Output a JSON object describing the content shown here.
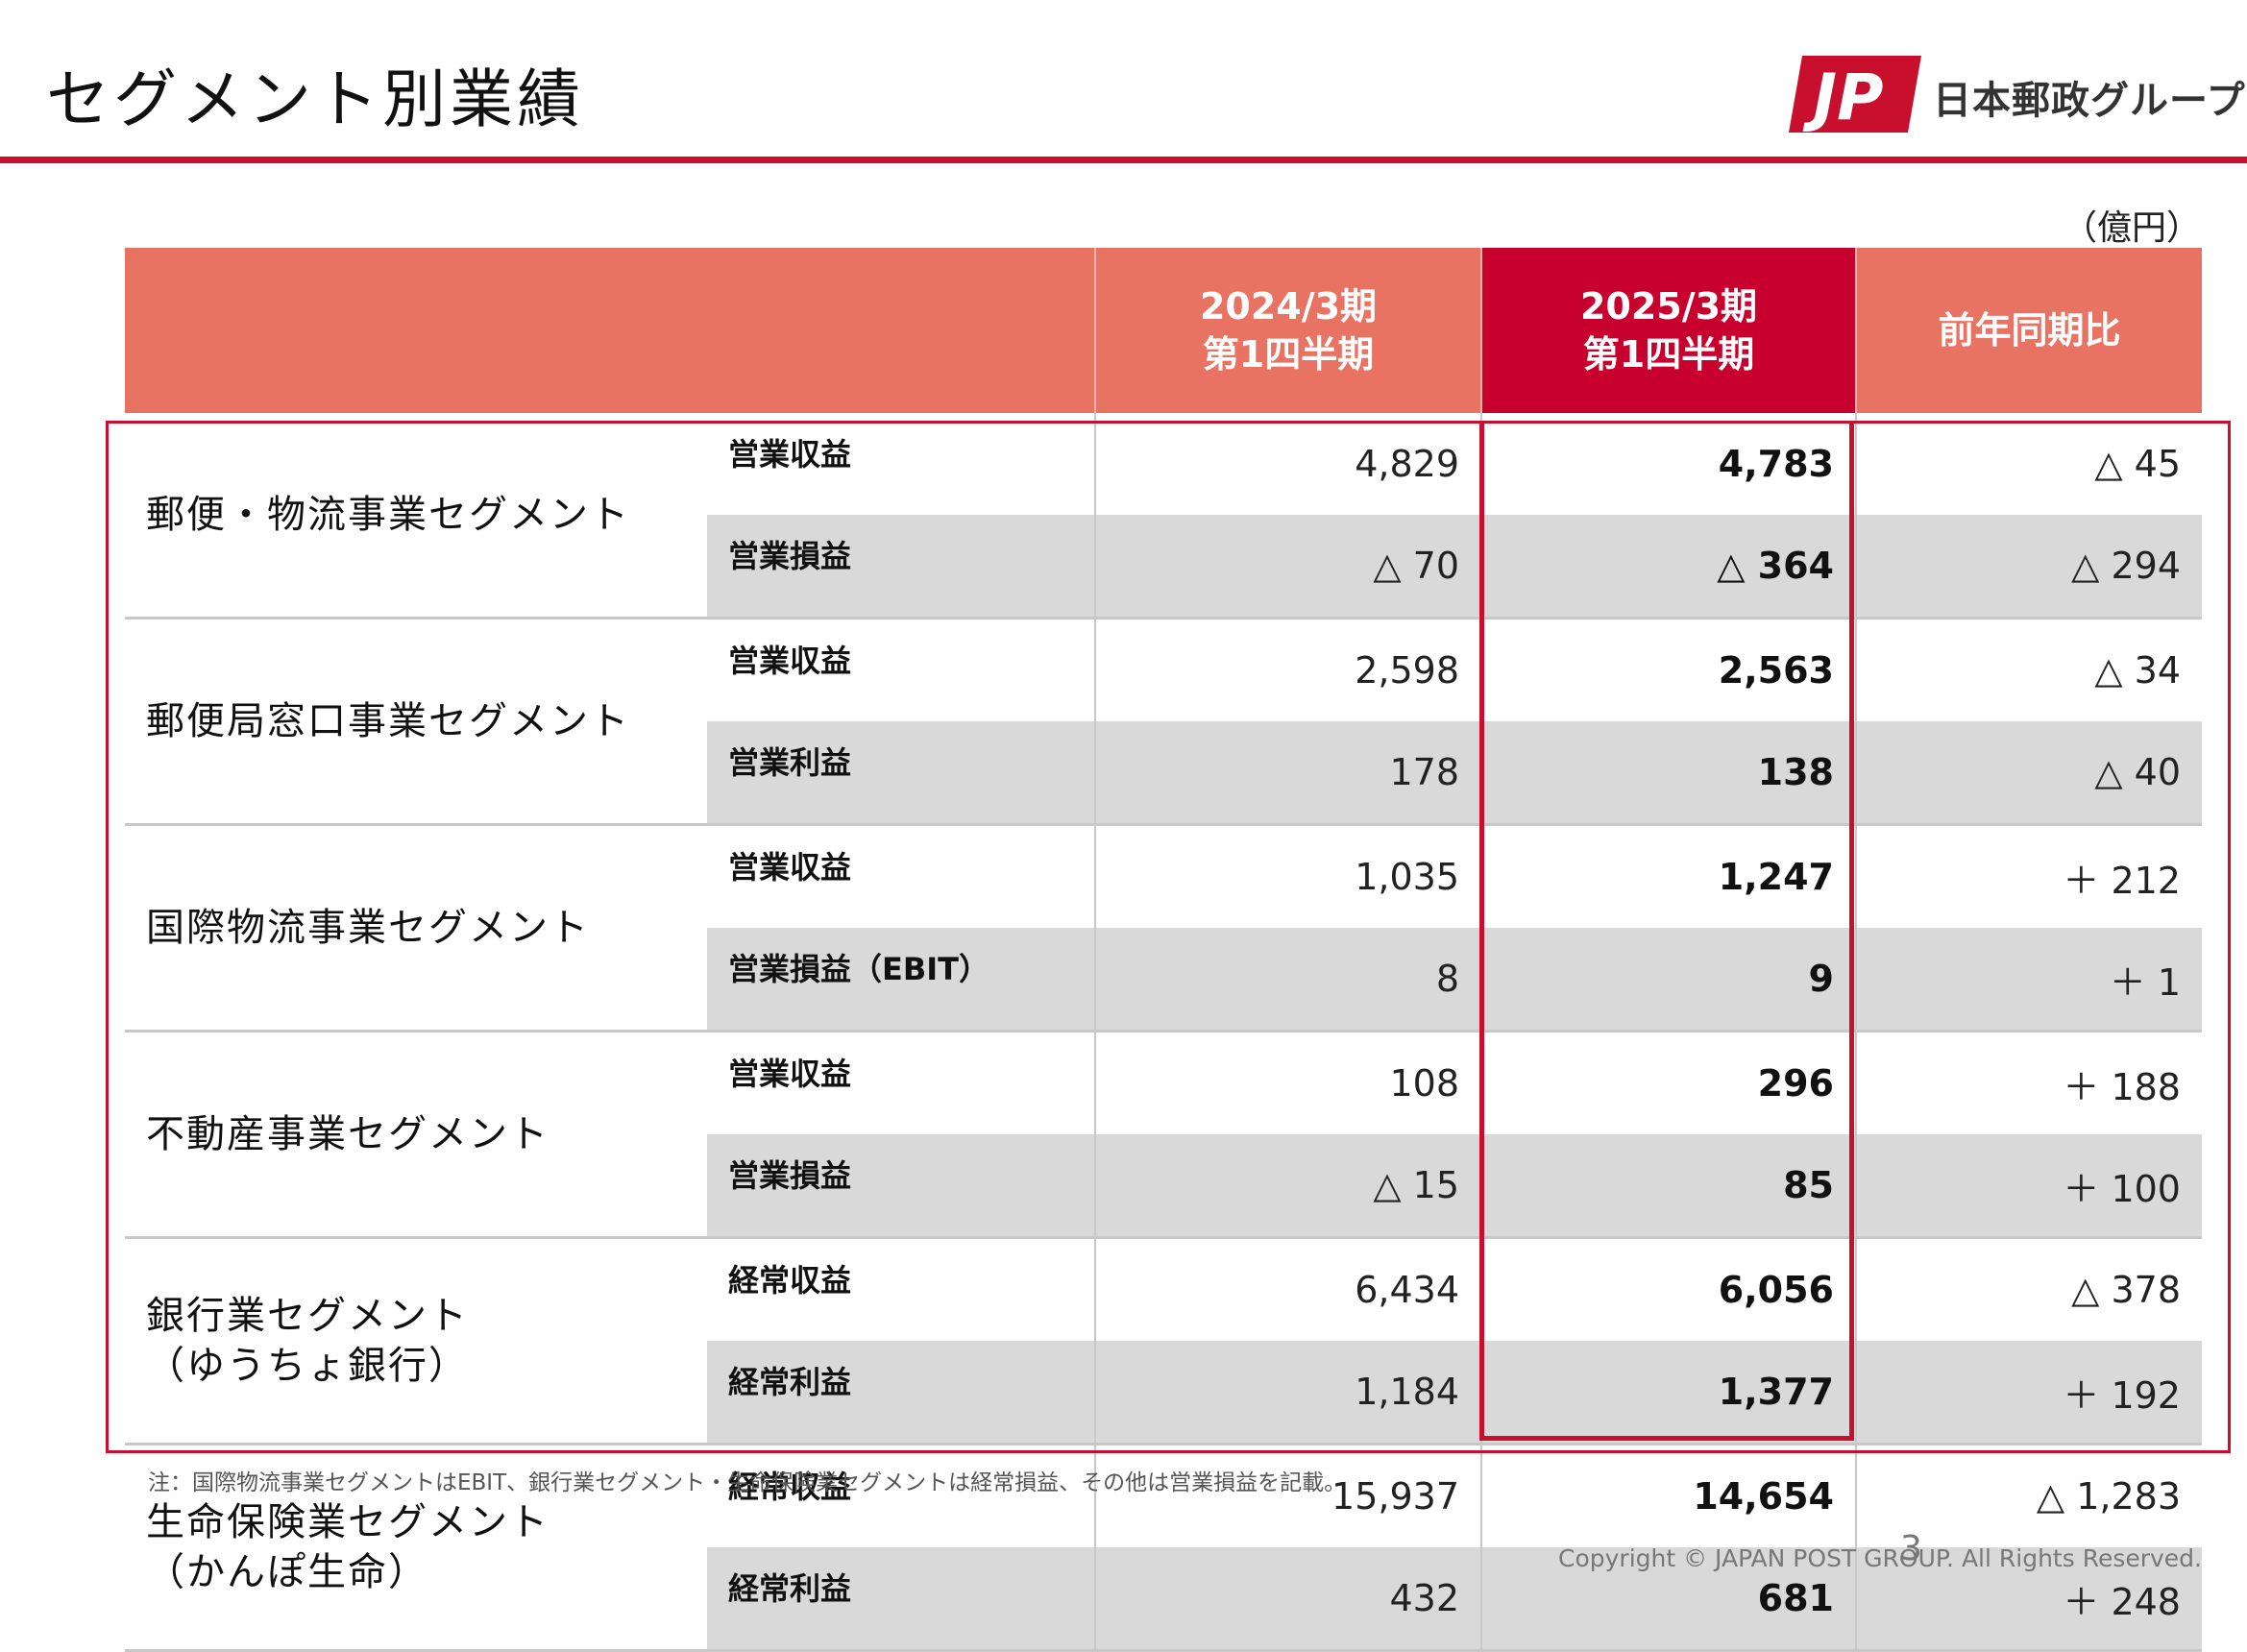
{
  "title": "セグメント別業績",
  "logo": {
    "mark": "JP",
    "name": "日本郵政グループ"
  },
  "unit": "（億円）",
  "columns": {
    "prev": [
      "2024/3期",
      "第1四半期"
    ],
    "curr": [
      "2025/3期",
      "第1四半期"
    ],
    "change": "前年同期比"
  },
  "segments": [
    {
      "name": [
        "郵便・物流事業セグメント"
      ],
      "rows": [
        {
          "metric": "営業収益",
          "prev": "4,829",
          "curr": "4,783",
          "change": "△ 45"
        },
        {
          "metric": "営業損益",
          "prev": "△ 70",
          "curr": "△ 364",
          "change": "△ 294"
        }
      ]
    },
    {
      "name": [
        "郵便局窓口事業セグメント"
      ],
      "rows": [
        {
          "metric": "営業収益",
          "prev": "2,598",
          "curr": "2,563",
          "change": "△ 34"
        },
        {
          "metric": "営業利益",
          "prev": "178",
          "curr": "138",
          "change": "△ 40"
        }
      ]
    },
    {
      "name": [
        "国際物流事業セグメント"
      ],
      "rows": [
        {
          "metric": "営業収益",
          "prev": "1,035",
          "curr": "1,247",
          "change": "＋ 212"
        },
        {
          "metric": "営業損益（EBIT）",
          "prev": "8",
          "curr": "9",
          "change": "＋ 1"
        }
      ]
    },
    {
      "name": [
        "不動産事業セグメント"
      ],
      "rows": [
        {
          "metric": "営業収益",
          "prev": "108",
          "curr": "296",
          "change": "＋ 188"
        },
        {
          "metric": "営業損益",
          "prev": "△ 15",
          "curr": "85",
          "change": "＋ 100"
        }
      ]
    },
    {
      "name": [
        "銀行業セグメント",
        "（ゆうちょ銀行）"
      ],
      "rows": [
        {
          "metric": "経常収益",
          "prev": "6,434",
          "curr": "6,056",
          "change": "△ 378"
        },
        {
          "metric": "経常利益",
          "prev": "1,184",
          "curr": "1,377",
          "change": "＋ 192"
        }
      ]
    },
    {
      "name": [
        "生命保険業セグメント",
        "（かんぽ生命）"
      ],
      "rows": [
        {
          "metric": "経常収益",
          "prev": "15,937",
          "curr": "14,654",
          "change": "△ 1,283"
        },
        {
          "metric": "経常利益",
          "prev": "432",
          "curr": "681",
          "change": "＋ 248"
        }
      ]
    }
  ],
  "note": "注：国際物流事業セグメントはEBIT、銀行業セグメント・生命保険業セグメントは経常損益、その他は営業損益を記載。",
  "copyright": "Copyright ©  JAPAN POST GROUP. All Rights Reserved.",
  "page_number": "3",
  "colors": {
    "accent": "#c8102e",
    "header": "#e87363",
    "highlight": "#c8002e",
    "band": "#d9d9d9"
  }
}
